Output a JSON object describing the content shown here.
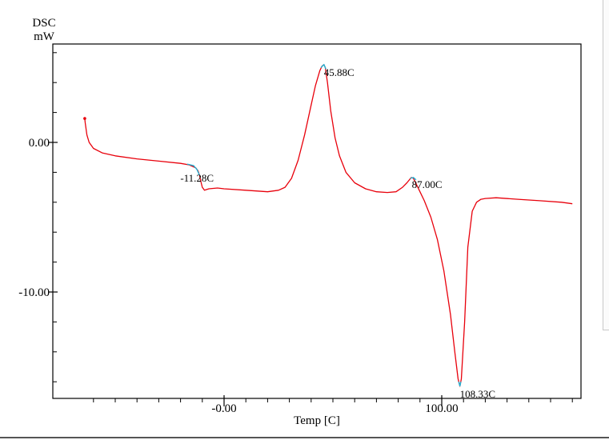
{
  "chart_data": {
    "type": "line",
    "ylabel_top": "DSC",
    "ylabel_unit": "mW",
    "xlabel": "Temp [C]",
    "xlim": [
      -70,
      165
    ],
    "ylim": [
      -17,
      6.5
    ],
    "x_ticks": [
      {
        "value": 0,
        "label": "-0.00"
      },
      {
        "value": 100,
        "label": "100.00"
      }
    ],
    "y_ticks": [
      {
        "value": 0,
        "label": "0.00"
      },
      {
        "value": -10,
        "label": "-10.00"
      }
    ],
    "colors": {
      "curve": "#e8000b",
      "highlight": "#18b4d8",
      "axis": "#000000"
    },
    "series": [
      {
        "x": [
          -64,
          -63.8,
          -63,
          -62,
          -60,
          -56,
          -50,
          -40,
          -30,
          -20,
          -16,
          -13,
          -12,
          -11.28,
          -10.5,
          -10,
          -9,
          -7,
          -3,
          0,
          10,
          20,
          25,
          28,
          31,
          34,
          37,
          40,
          42,
          44,
          45,
          45.88,
          46.5,
          47.5,
          49,
          51,
          53,
          56,
          60,
          65,
          70,
          75,
          79,
          82,
          84,
          86,
          87,
          88,
          90,
          92,
          95,
          98,
          101,
          104,
          106,
          107.5,
          108.33,
          109,
          110.5,
          112,
          114,
          116,
          118,
          120,
          125,
          135,
          145,
          155,
          160
        ],
        "y": [
          1.6,
          1.3,
          0.5,
          0,
          -0.4,
          -0.7,
          -0.9,
          -1.1,
          -1.25,
          -1.4,
          -1.5,
          -1.7,
          -1.9,
          -2.2,
          -2.7,
          -3.0,
          -3.2,
          -3.1,
          -3.05,
          -3.1,
          -3.2,
          -3.3,
          -3.2,
          -3.0,
          -2.4,
          -1.2,
          0.5,
          2.5,
          3.8,
          4.8,
          5.1,
          5.2,
          5.0,
          4.0,
          2.1,
          0.3,
          -0.9,
          -2.0,
          -2.7,
          -3.1,
          -3.3,
          -3.35,
          -3.3,
          -3.0,
          -2.7,
          -2.35,
          -2.4,
          -2.7,
          -3.3,
          -3.9,
          -5.0,
          -6.5,
          -8.6,
          -11.5,
          -14.0,
          -15.8,
          -16.3,
          -15.8,
          -12.0,
          -7.0,
          -4.6,
          -4.0,
          -3.8,
          -3.75,
          -3.7,
          -3.8,
          -3.9,
          -4.0,
          -4.1
        ]
      }
    ],
    "highlights": [
      {
        "x": [
          -17,
          -14,
          -12.5,
          -11.28
        ],
        "y": [
          -1.45,
          -1.55,
          -1.8,
          -2.2
        ]
      },
      {
        "x": [
          44.5,
          45.88,
          46.8
        ],
        "y": [
          5.0,
          5.2,
          4.9
        ]
      },
      {
        "x": [
          85.5,
          87.0,
          88.2
        ],
        "y": [
          -2.4,
          -2.35,
          -2.5
        ]
      },
      {
        "x": [
          107.8,
          108.33,
          108.8
        ],
        "y": [
          -16.0,
          -16.3,
          -16.0
        ]
      }
    ],
    "annotations": [
      {
        "text": "-11.28C",
        "x": -11.28,
        "y": -2.2
      },
      {
        "text": "45.88C",
        "x": 45.88,
        "y": 5.2
      },
      {
        "text": "87.00C",
        "x": 87.0,
        "y": -2.35
      },
      {
        "text": "108.33C",
        "x": 108.33,
        "y": -16.3
      }
    ]
  }
}
